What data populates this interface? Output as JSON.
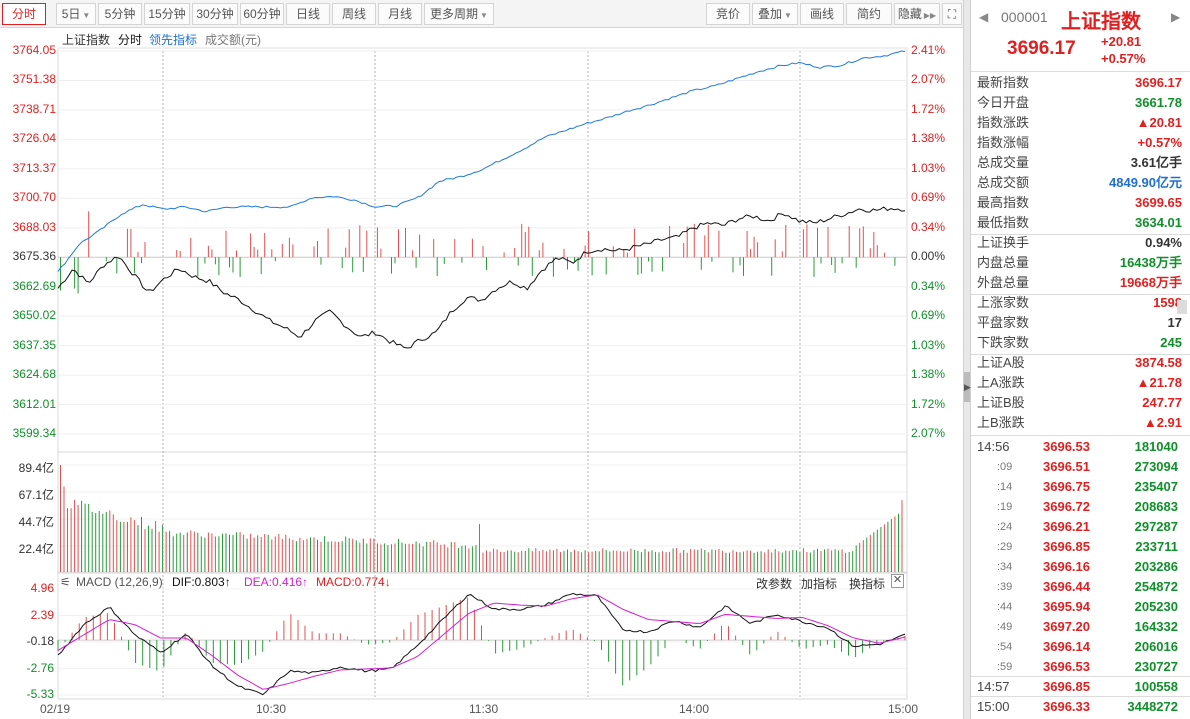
{
  "toolbar": {
    "left_buttons": [
      "分时",
      "5日",
      "5分钟",
      "15分钟",
      "30分钟",
      "60分钟",
      "日线",
      "周线",
      "月线",
      "更多周期"
    ],
    "right_buttons": [
      "竞价",
      "叠加",
      "画线",
      "简约",
      "隐藏"
    ],
    "expand_glyph": "⛶"
  },
  "legend": {
    "name": "上证指数",
    "mode": "分时",
    "leading": "领先指标",
    "amount": "成交额(元)"
  },
  "price_axis": {
    "left_labels": [
      "3764.05",
      "3751.38",
      "3738.71",
      "3726.04",
      "3713.37",
      "3700.70",
      "3688.03",
      "3675.36",
      "3662.69",
      "3650.02",
      "3637.35",
      "3624.68",
      "3612.01",
      "3599.34"
    ],
    "right_labels": [
      "2.41%",
      "2.07%",
      "1.72%",
      "1.38%",
      "1.03%",
      "0.69%",
      "0.34%",
      "0.00%",
      "0.34%",
      "0.69%",
      "1.03%",
      "1.38%",
      "1.72%",
      "2.07%"
    ],
    "up_color": "#e02020",
    "down_color": "#10902a"
  },
  "volume_axis": {
    "labels": [
      "89.4亿",
      "67.1亿",
      "44.7亿",
      "22.4亿"
    ]
  },
  "macd": {
    "title": "MACD (12,26,9)",
    "dif": "DIF:0.803↑",
    "dea": "DEA:0.416↑",
    "macd": "MACD:0.774↓",
    "labels": [
      "4.96",
      "2.39",
      "-0.18",
      "-2.76",
      "-5.33"
    ],
    "buttons": [
      "改参数",
      "加指标",
      "换指标"
    ]
  },
  "time_axis": [
    "02/19",
    "10:30",
    "11:30",
    "14:00",
    "15:00"
  ],
  "chart_data": {
    "type": "line",
    "title": "",
    "prev_close": 3675.36,
    "ylim": [
      3599.34,
      3764.05
    ],
    "series": [
      {
        "name": "上证指数",
        "values": [
          3662.0,
          3670.5,
          3664.0,
          3672.0,
          3676.0,
          3668.0,
          3660.0,
          3666.0,
          3670.5,
          3667.0,
          3665.0,
          3660.0,
          3657.0,
          3652.5,
          3648.0,
          3645.0,
          3641.0,
          3648.0,
          3652.0,
          3646.0,
          3641.0,
          3643.0,
          3639.0,
          3636.0,
          3640.0,
          3643.0,
          3652.0,
          3658.0,
          3657.0,
          3662.0,
          3665.0,
          3662.0,
          3670.0,
          3675.0,
          3673.0,
          3678.0,
          3679.0,
          3678.0,
          3679.5,
          3681.0,
          3683.0,
          3684.0,
          3688.0,
          3690.0,
          3689.0,
          3692.0,
          3693.0,
          3691.0,
          3694.5,
          3691.0,
          3690.0,
          3692.0,
          3694.0,
          3696.2,
          3695.5,
          3696.5,
          3696.17
        ]
      },
      {
        "name": "领先指标",
        "values": [
          3669.0,
          3681.0,
          3687.0,
          3694.0,
          3698.0,
          3696.0,
          3697.0,
          3695.0,
          3697.0,
          3697.0,
          3697.0,
          3697.0,
          3701.0,
          3701.5,
          3700.0,
          3697.0,
          3697.5,
          3701.0,
          3708.0,
          3710.0,
          3713.0,
          3717.5,
          3722.0,
          3727.0,
          3730.0,
          3733.0,
          3735.5,
          3738.5,
          3741.0,
          3744.0,
          3747.0,
          3749.0,
          3752.0,
          3755.0,
          3757.5,
          3759.0,
          3757.0,
          3758.0,
          3761.0,
          3762.0,
          3764.0
        ]
      }
    ],
    "volume": {
      "unit": "亿",
      "ylim": [
        0,
        89.4
      ]
    },
    "macd_lim": [
      -5.33,
      4.96
    ]
  },
  "sidebar": {
    "code": "000001",
    "name": "上证指数",
    "price": "3696.17",
    "change": "+20.81",
    "change_pct": "+0.57%",
    "stats": [
      {
        "k": "最新指数",
        "v": "3696.17",
        "c": "red"
      },
      {
        "k": "今日开盘",
        "v": "3661.78",
        "c": "green"
      },
      {
        "k": "指数涨跌",
        "v": "▲20.81",
        "c": "red"
      },
      {
        "k": "指数涨幅",
        "v": "+0.57%",
        "c": "red"
      },
      {
        "k": "总成交量",
        "v": "3.61亿手",
        "c": "dark"
      },
      {
        "k": "总成交额",
        "v": "4849.90亿元",
        "c": "blue"
      },
      {
        "k": "最高指数",
        "v": "3699.65",
        "c": "red"
      },
      {
        "k": "最低指数",
        "v": "3634.01",
        "c": "green"
      },
      {
        "k": "上证换手",
        "v": "0.94%",
        "c": "dark"
      },
      {
        "k": "内盘总量",
        "v": "16438万手",
        "c": "green"
      },
      {
        "k": "外盘总量",
        "v": "19668万手",
        "c": "red"
      },
      {
        "k": "上涨家数",
        "v": "1598",
        "c": "red"
      },
      {
        "k": "平盘家数",
        "v": "17",
        "c": "dark"
      },
      {
        "k": "下跌家数",
        "v": "245",
        "c": "green"
      },
      {
        "k": "上证A股",
        "v": "3874.58",
        "c": "red"
      },
      {
        "k": "上A涨跌",
        "v": "▲21.78",
        "c": "red"
      },
      {
        "k": "上证B股",
        "v": "247.77",
        "c": "red"
      },
      {
        "k": "上B涨跌",
        "v": "▲2.91",
        "c": "red"
      }
    ],
    "ticks": [
      {
        "t": "14:56",
        "p": "3696.53",
        "v": "181040",
        "small": false
      },
      {
        "t": ":09",
        "p": "3696.51",
        "v": "273094",
        "small": true
      },
      {
        "t": ":14",
        "p": "3696.75",
        "v": "235407",
        "small": true
      },
      {
        "t": ":19",
        "p": "3696.72",
        "v": "208683",
        "small": true
      },
      {
        "t": ":24",
        "p": "3696.21",
        "v": "297287",
        "small": true
      },
      {
        "t": ":29",
        "p": "3696.85",
        "v": "233711",
        "small": true
      },
      {
        "t": ":34",
        "p": "3696.16",
        "v": "203286",
        "small": true
      },
      {
        "t": ":39",
        "p": "3696.44",
        "v": "254872",
        "small": true
      },
      {
        "t": ":44",
        "p": "3695.94",
        "v": "205230",
        "small": true
      },
      {
        "t": ":49",
        "p": "3697.20",
        "v": "164332",
        "small": true
      },
      {
        "t": ":54",
        "p": "3696.14",
        "v": "206016",
        "small": true
      },
      {
        "t": ":59",
        "p": "3696.53",
        "v": "230727",
        "small": true
      },
      {
        "t": "14:57",
        "p": "3696.85",
        "v": "100558",
        "small": false
      },
      {
        "t": "15:00",
        "p": "3696.33",
        "v": "3448272",
        "small": false
      }
    ]
  }
}
